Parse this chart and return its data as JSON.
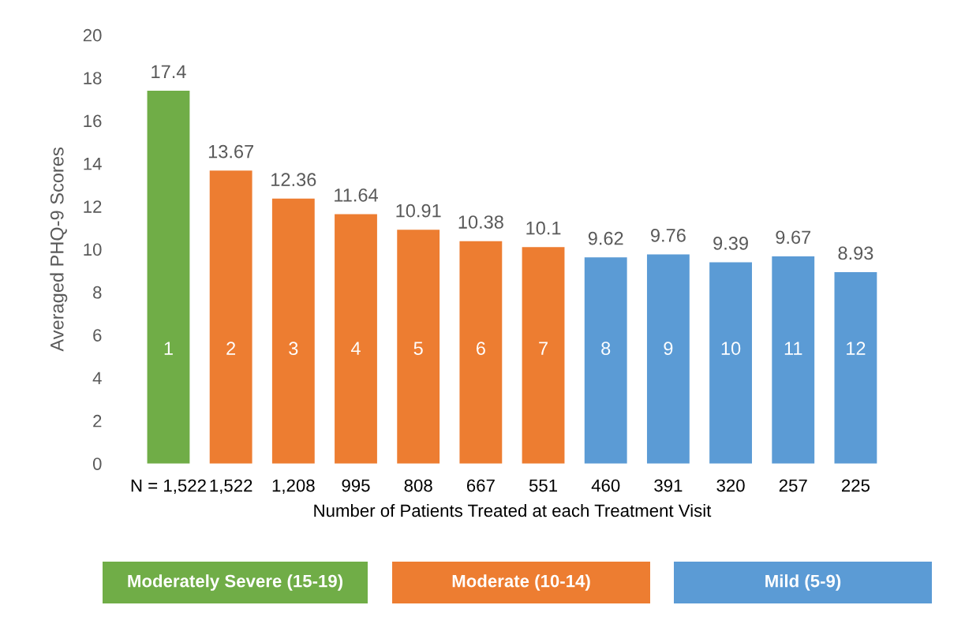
{
  "chart_data": {
    "type": "bar",
    "ylabel": "Averaged PHQ-9 Scores",
    "xlabel": "Number of Patients Treated at each Treatment Visit",
    "categories": [
      "N = 1,522",
      "1,522",
      "1,208",
      "995",
      "808",
      "667",
      "551",
      "460",
      "391",
      "320",
      "257",
      "225"
    ],
    "series": [
      {
        "name": "Moderately Severe (15-19)",
        "color": "#70ad47",
        "values": [
          17.4,
          null,
          null,
          null,
          null,
          null,
          null,
          null,
          null,
          null,
          null,
          null
        ]
      },
      {
        "name": "Moderate (10-14)",
        "color": "#ed7d31",
        "values": [
          null,
          13.67,
          12.36,
          11.64,
          10.91,
          10.38,
          10.1,
          null,
          null,
          null,
          null,
          null
        ]
      },
      {
        "name": "Mild (5-9)",
        "color": "#5b9bd5",
        "values": [
          null,
          null,
          null,
          null,
          null,
          null,
          null,
          9.62,
          9.76,
          9.39,
          9.67,
          8.93
        ]
      }
    ],
    "ylim": [
      0,
      20
    ],
    "yticks": [
      0,
      2,
      4,
      6,
      8,
      10,
      12,
      14,
      16,
      18,
      20
    ],
    "grid": false,
    "legend": "bottom",
    "data_labels": true,
    "annotations": [
      "1",
      "2",
      "3",
      "4",
      "5",
      "6",
      "7",
      "8",
      "9",
      "10",
      "11",
      "12"
    ]
  }
}
